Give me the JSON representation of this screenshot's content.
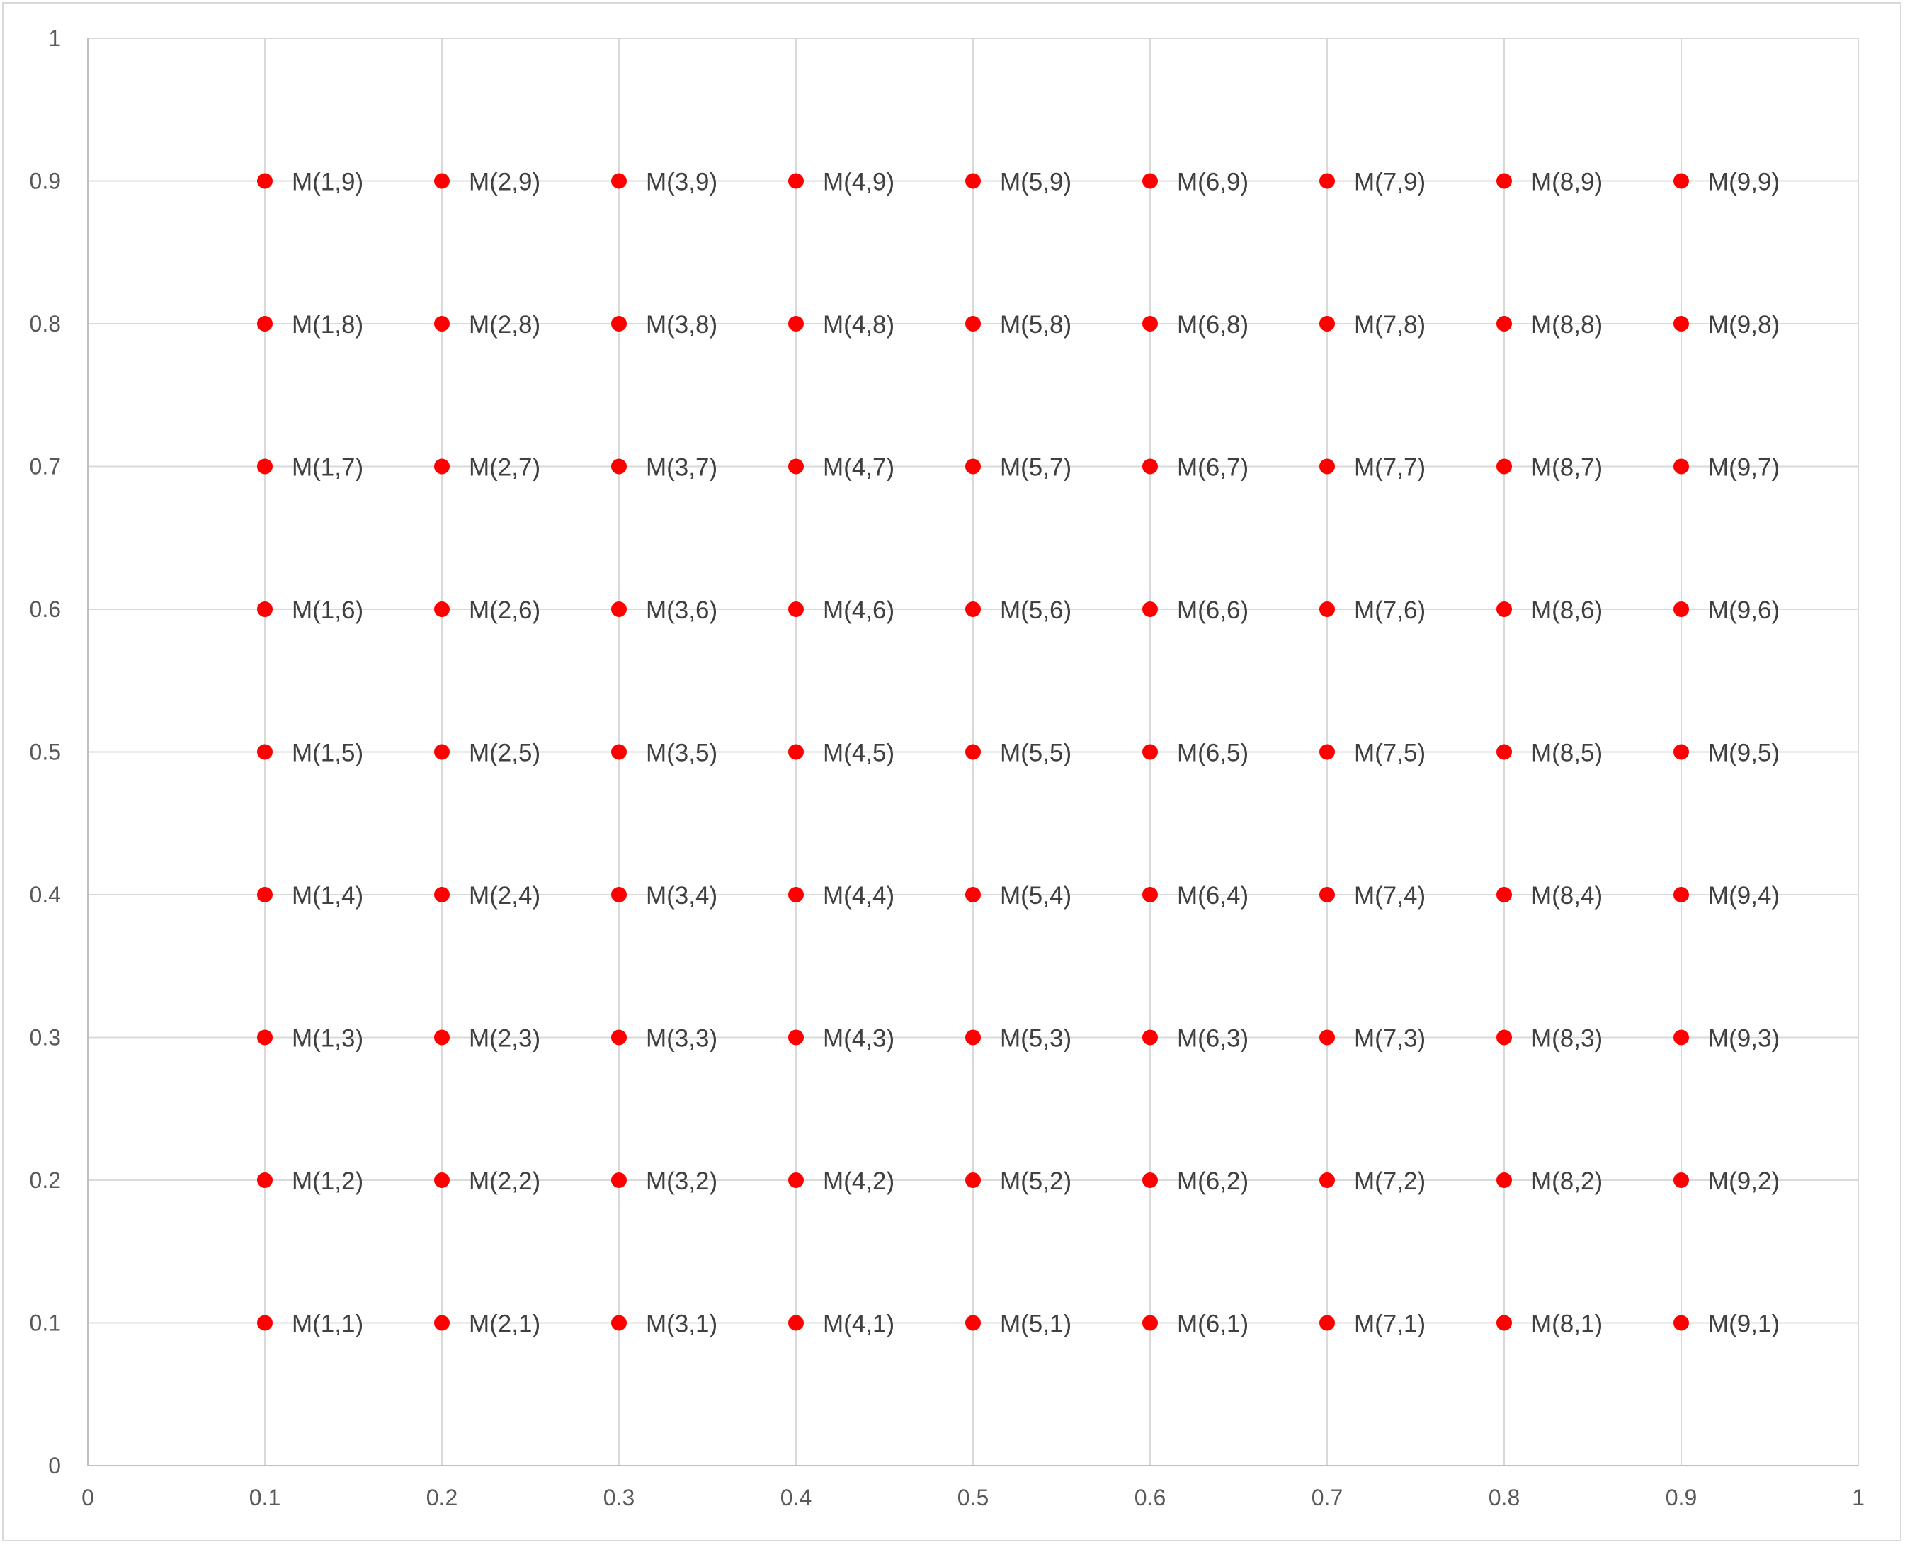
{
  "chart_data": {
    "type": "scatter",
    "title": "",
    "xlabel": "",
    "ylabel": "",
    "xlim": [
      0,
      1
    ],
    "ylim": [
      0,
      1
    ],
    "x_ticks": [
      "0",
      "0.1",
      "0.2",
      "0.3",
      "0.4",
      "0.5",
      "0.6",
      "0.7",
      "0.8",
      "0.9",
      "1"
    ],
    "y_ticks": [
      "0",
      "0.1",
      "0.2",
      "0.3",
      "0.4",
      "0.5",
      "0.6",
      "0.7",
      "0.8",
      "0.9",
      "1"
    ],
    "grid": true,
    "legend": "none",
    "marker_color": "#ff0000",
    "series": [
      {
        "points": [
          {
            "x": 0.1,
            "y": 0.1,
            "label": "M(1,1)"
          },
          {
            "x": 0.2,
            "y": 0.1,
            "label": "M(2,1)"
          },
          {
            "x": 0.3,
            "y": 0.1,
            "label": "M(3,1)"
          },
          {
            "x": 0.4,
            "y": 0.1,
            "label": "M(4,1)"
          },
          {
            "x": 0.5,
            "y": 0.1,
            "label": "M(5,1)"
          },
          {
            "x": 0.6,
            "y": 0.1,
            "label": "M(6,1)"
          },
          {
            "x": 0.7,
            "y": 0.1,
            "label": "M(7,1)"
          },
          {
            "x": 0.8,
            "y": 0.1,
            "label": "M(8,1)"
          },
          {
            "x": 0.9,
            "y": 0.1,
            "label": "M(9,1)"
          },
          {
            "x": 0.1,
            "y": 0.2,
            "label": "M(1,2)"
          },
          {
            "x": 0.2,
            "y": 0.2,
            "label": "M(2,2)"
          },
          {
            "x": 0.3,
            "y": 0.2,
            "label": "M(3,2)"
          },
          {
            "x": 0.4,
            "y": 0.2,
            "label": "M(4,2)"
          },
          {
            "x": 0.5,
            "y": 0.2,
            "label": "M(5,2)"
          },
          {
            "x": 0.6,
            "y": 0.2,
            "label": "M(6,2)"
          },
          {
            "x": 0.7,
            "y": 0.2,
            "label": "M(7,2)"
          },
          {
            "x": 0.8,
            "y": 0.2,
            "label": "M(8,2)"
          },
          {
            "x": 0.9,
            "y": 0.2,
            "label": "M(9,2)"
          },
          {
            "x": 0.1,
            "y": 0.3,
            "label": "M(1,3)"
          },
          {
            "x": 0.2,
            "y": 0.3,
            "label": "M(2,3)"
          },
          {
            "x": 0.3,
            "y": 0.3,
            "label": "M(3,3)"
          },
          {
            "x": 0.4,
            "y": 0.3,
            "label": "M(4,3)"
          },
          {
            "x": 0.5,
            "y": 0.3,
            "label": "M(5,3)"
          },
          {
            "x": 0.6,
            "y": 0.3,
            "label": "M(6,3)"
          },
          {
            "x": 0.7,
            "y": 0.3,
            "label": "M(7,3)"
          },
          {
            "x": 0.8,
            "y": 0.3,
            "label": "M(8,3)"
          },
          {
            "x": 0.9,
            "y": 0.3,
            "label": "M(9,3)"
          },
          {
            "x": 0.1,
            "y": 0.4,
            "label": "M(1,4)"
          },
          {
            "x": 0.2,
            "y": 0.4,
            "label": "M(2,4)"
          },
          {
            "x": 0.3,
            "y": 0.4,
            "label": "M(3,4)"
          },
          {
            "x": 0.4,
            "y": 0.4,
            "label": "M(4,4)"
          },
          {
            "x": 0.5,
            "y": 0.4,
            "label": "M(5,4)"
          },
          {
            "x": 0.6,
            "y": 0.4,
            "label": "M(6,4)"
          },
          {
            "x": 0.7,
            "y": 0.4,
            "label": "M(7,4)"
          },
          {
            "x": 0.8,
            "y": 0.4,
            "label": "M(8,4)"
          },
          {
            "x": 0.9,
            "y": 0.4,
            "label": "M(9,4)"
          },
          {
            "x": 0.1,
            "y": 0.5,
            "label": "M(1,5)"
          },
          {
            "x": 0.2,
            "y": 0.5,
            "label": "M(2,5)"
          },
          {
            "x": 0.3,
            "y": 0.5,
            "label": "M(3,5)"
          },
          {
            "x": 0.4,
            "y": 0.5,
            "label": "M(4,5)"
          },
          {
            "x": 0.5,
            "y": 0.5,
            "label": "M(5,5)"
          },
          {
            "x": 0.6,
            "y": 0.5,
            "label": "M(6,5)"
          },
          {
            "x": 0.7,
            "y": 0.5,
            "label": "M(7,5)"
          },
          {
            "x": 0.8,
            "y": 0.5,
            "label": "M(8,5)"
          },
          {
            "x": 0.9,
            "y": 0.5,
            "label": "M(9,5)"
          },
          {
            "x": 0.1,
            "y": 0.6,
            "label": "M(1,6)"
          },
          {
            "x": 0.2,
            "y": 0.6,
            "label": "M(2,6)"
          },
          {
            "x": 0.3,
            "y": 0.6,
            "label": "M(3,6)"
          },
          {
            "x": 0.4,
            "y": 0.6,
            "label": "M(4,6)"
          },
          {
            "x": 0.5,
            "y": 0.6,
            "label": "M(5,6)"
          },
          {
            "x": 0.6,
            "y": 0.6,
            "label": "M(6,6)"
          },
          {
            "x": 0.7,
            "y": 0.6,
            "label": "M(7,6)"
          },
          {
            "x": 0.8,
            "y": 0.6,
            "label": "M(8,6)"
          },
          {
            "x": 0.9,
            "y": 0.6,
            "label": "M(9,6)"
          },
          {
            "x": 0.1,
            "y": 0.7,
            "label": "M(1,7)"
          },
          {
            "x": 0.2,
            "y": 0.7,
            "label": "M(2,7)"
          },
          {
            "x": 0.3,
            "y": 0.7,
            "label": "M(3,7)"
          },
          {
            "x": 0.4,
            "y": 0.7,
            "label": "M(4,7)"
          },
          {
            "x": 0.5,
            "y": 0.7,
            "label": "M(5,7)"
          },
          {
            "x": 0.6,
            "y": 0.7,
            "label": "M(6,7)"
          },
          {
            "x": 0.7,
            "y": 0.7,
            "label": "M(7,7)"
          },
          {
            "x": 0.8,
            "y": 0.7,
            "label": "M(8,7)"
          },
          {
            "x": 0.9,
            "y": 0.7,
            "label": "M(9,7)"
          },
          {
            "x": 0.1,
            "y": 0.8,
            "label": "M(1,8)"
          },
          {
            "x": 0.2,
            "y": 0.8,
            "label": "M(2,8)"
          },
          {
            "x": 0.3,
            "y": 0.8,
            "label": "M(3,8)"
          },
          {
            "x": 0.4,
            "y": 0.8,
            "label": "M(4,8)"
          },
          {
            "x": 0.5,
            "y": 0.8,
            "label": "M(5,8)"
          },
          {
            "x": 0.6,
            "y": 0.8,
            "label": "M(6,8)"
          },
          {
            "x": 0.7,
            "y": 0.8,
            "label": "M(7,8)"
          },
          {
            "x": 0.8,
            "y": 0.8,
            "label": "M(8,8)"
          },
          {
            "x": 0.9,
            "y": 0.8,
            "label": "M(9,8)"
          },
          {
            "x": 0.1,
            "y": 0.9,
            "label": "M(1,9)"
          },
          {
            "x": 0.2,
            "y": 0.9,
            "label": "M(2,9)"
          },
          {
            "x": 0.3,
            "y": 0.9,
            "label": "M(3,9)"
          },
          {
            "x": 0.4,
            "y": 0.9,
            "label": "M(4,9)"
          },
          {
            "x": 0.5,
            "y": 0.9,
            "label": "M(5,9)"
          },
          {
            "x": 0.6,
            "y": 0.9,
            "label": "M(6,9)"
          },
          {
            "x": 0.7,
            "y": 0.9,
            "label": "M(7,9)"
          },
          {
            "x": 0.8,
            "y": 0.9,
            "label": "M(8,9)"
          },
          {
            "x": 0.9,
            "y": 0.9,
            "label": "M(9,9)"
          }
        ]
      }
    ]
  }
}
